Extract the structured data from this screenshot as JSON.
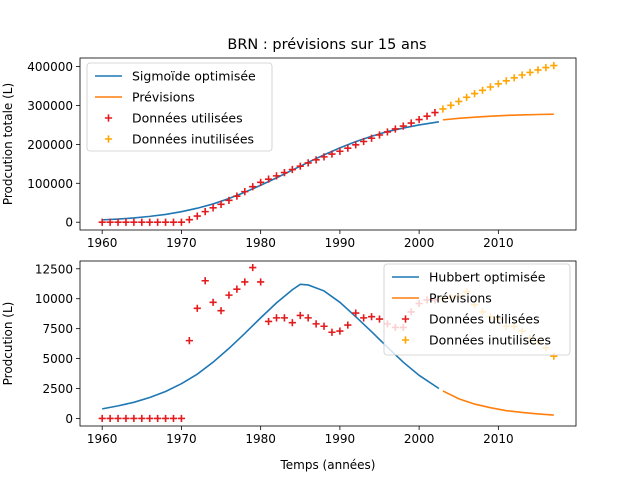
{
  "figure_title": "BRN : prévisions sur 15 ans",
  "chart_data": [
    {
      "type": "line",
      "title": "BRN : prévisions sur 15 ans",
      "xlabel": "",
      "ylabel": "Prodcution totale (L)",
      "xlim": [
        1957.2,
        2019.8
      ],
      "ylim": [
        -20000,
        422000
      ],
      "xticks": [
        1960,
        1970,
        1980,
        1990,
        2000,
        2010
      ],
      "yticks": [
        0,
        100000,
        200000,
        300000,
        400000
      ],
      "ytick_labels": [
        "0",
        "100000",
        "200000",
        "300000",
        "400000"
      ],
      "legend_position": "upper-left",
      "legend": [
        {
          "label": "Sigmoïde optimisée",
          "kind": "line",
          "color": "#1f77b4"
        },
        {
          "label": "Prévisions",
          "kind": "line",
          "color": "#ff7f0e"
        },
        {
          "label": "Données utilisées",
          "kind": "marker",
          "color": "#e41a1c"
        },
        {
          "label": "Données inutilisées",
          "kind": "marker",
          "color": "#ffa500"
        }
      ],
      "series": [
        {
          "name": "Sigmoïde optimisée",
          "style": "line",
          "color": "#1f77b4",
          "x": [
            1960,
            1962,
            1964,
            1966,
            1968,
            1970,
            1972,
            1974,
            1976,
            1978,
            1980,
            1982,
            1984,
            1986,
            1988,
            1990,
            1992,
            1994,
            1996,
            1998,
            2000,
            2002.5
          ],
          "y": [
            6000,
            8000,
            11000,
            15000,
            20000,
            27000,
            36000,
            47000,
            61000,
            77000,
            95000,
            114000,
            134000,
            154000,
            173000,
            191000,
            207000,
            221000,
            233000,
            242000,
            250000,
            258000
          ]
        },
        {
          "name": "Prévisions",
          "style": "line",
          "color": "#ff7f0e",
          "x": [
            2003,
            2005,
            2007,
            2009,
            2011,
            2013,
            2015,
            2017
          ],
          "y": [
            263000,
            267000,
            270000,
            272500,
            274500,
            275800,
            276800,
            277500
          ]
        },
        {
          "name": "Données utilisées",
          "style": "marker",
          "color": "#e41a1c",
          "x": [
            1960,
            1961,
            1962,
            1963,
            1964,
            1965,
            1966,
            1967,
            1968,
            1969,
            1970,
            1971,
            1972,
            1973,
            1974,
            1975,
            1976,
            1977,
            1978,
            1979,
            1980,
            1981,
            1982,
            1983,
            1984,
            1985,
            1986,
            1987,
            1988,
            1989,
            1990,
            1991,
            1992,
            1993,
            1994,
            1995,
            1996,
            1997,
            1998,
            1999,
            2000,
            2001,
            2002
          ],
          "y": [
            0,
            0,
            0,
            0,
            0,
            0,
            0,
            0,
            0,
            0,
            0,
            6500,
            15700,
            27200,
            36900,
            45900,
            56200,
            67000,
            78600,
            91200,
            102600,
            110700,
            119100,
            127500,
            135400,
            144000,
            152400,
            160300,
            167900,
            175100,
            182400,
            190200,
            199000,
            207400,
            215800,
            224100,
            232000,
            239600,
            247000,
            254900,
            263800,
            272500,
            281700
          ]
        },
        {
          "name": "Données inutilisées",
          "style": "marker",
          "color": "#ffa500",
          "x": [
            2003,
            2004,
            2005,
            2006,
            2007,
            2008,
            2009,
            2010,
            2011,
            2012,
            2013,
            2014,
            2015,
            2016,
            2017
          ],
          "y": [
            291000,
            300500,
            310500,
            321000,
            330500,
            339000,
            347500,
            355700,
            363400,
            371100,
            378300,
            385000,
            391400,
            397300,
            402500
          ]
        }
      ]
    },
    {
      "type": "line",
      "title": "",
      "xlabel": "Temps (années)",
      "ylabel": "Prodcution (L)",
      "xlim": [
        1957.2,
        2019.8
      ],
      "ylim": [
        -630,
        13150
      ],
      "xticks": [
        1960,
        1970,
        1980,
        1990,
        2000,
        2010
      ],
      "yticks": [
        0,
        2500,
        5000,
        7500,
        10000,
        12500
      ],
      "ytick_labels": [
        "0",
        "2500",
        "5000",
        "7500",
        "10000",
        "12500"
      ],
      "legend_position": "upper-right",
      "legend": [
        {
          "label": "Hubbert optimisée",
          "kind": "line",
          "color": "#1f77b4"
        },
        {
          "label": "Prévisions",
          "kind": "line",
          "color": "#ff7f0e"
        },
        {
          "label": "Données utilisées",
          "kind": "marker",
          "color": "#e41a1c"
        },
        {
          "label": "Données inutilisées",
          "kind": "marker",
          "color": "#ffa500"
        }
      ],
      "series": [
        {
          "name": "Hubbert optimisée",
          "style": "line",
          "color": "#1f77b4",
          "x": [
            1960,
            1962,
            1964,
            1966,
            1968,
            1970,
            1972,
            1974,
            1976,
            1978,
            1980,
            1982,
            1984,
            1985,
            1986,
            1988,
            1990,
            1992,
            1994,
            1996,
            1998,
            2000,
            2002.5
          ],
          "y": [
            800,
            1050,
            1350,
            1750,
            2250,
            2900,
            3700,
            4700,
            5850,
            7100,
            8400,
            9650,
            10750,
            11200,
            11150,
            10650,
            9700,
            8500,
            7250,
            5950,
            4700,
            3600,
            2500
          ]
        },
        {
          "name": "Prévisions",
          "style": "line",
          "color": "#ff7f0e",
          "x": [
            2003,
            2005,
            2007,
            2009,
            2011,
            2013,
            2015,
            2017
          ],
          "y": [
            2300,
            1650,
            1200,
            900,
            650,
            500,
            380,
            280
          ]
        },
        {
          "name": "Données utilisées",
          "style": "marker",
          "color": "#e41a1c",
          "x": [
            1960,
            1961,
            1962,
            1963,
            1964,
            1965,
            1966,
            1967,
            1968,
            1969,
            1970,
            1971,
            1972,
            1973,
            1974,
            1975,
            1976,
            1977,
            1978,
            1979,
            1980,
            1981,
            1982,
            1983,
            1984,
            1985,
            1986,
            1987,
            1988,
            1989,
            1990,
            1991,
            1992,
            1993,
            1994,
            1995,
            1996,
            1997,
            1998,
            1999,
            2000,
            2001,
            2002
          ],
          "y": [
            0,
            0,
            0,
            0,
            0,
            0,
            0,
            0,
            0,
            0,
            0,
            6500,
            9200,
            11500,
            9700,
            9000,
            10300,
            10800,
            11400,
            12600,
            11400,
            8100,
            8400,
            8400,
            8000,
            8600,
            8400,
            7900,
            7700,
            7200,
            7300,
            7800,
            8800,
            8400,
            8500,
            8300,
            7900,
            7600,
            7600,
            8900,
            9600,
            9900,
            9900
          ]
        },
        {
          "name": "Données inutilisées",
          "style": "marker",
          "color": "#ffa500",
          "x": [
            2003,
            2004,
            2005,
            2006,
            2007,
            2008,
            2009,
            2010,
            2011,
            2012,
            2013,
            2014,
            2015,
            2016,
            2017
          ],
          "y": [
            10000,
            10100,
            10200,
            10600,
            9500,
            8900,
            8500,
            8300,
            7700,
            7700,
            7300,
            6700,
            6400,
            5900,
            5200
          ]
        }
      ]
    }
  ]
}
